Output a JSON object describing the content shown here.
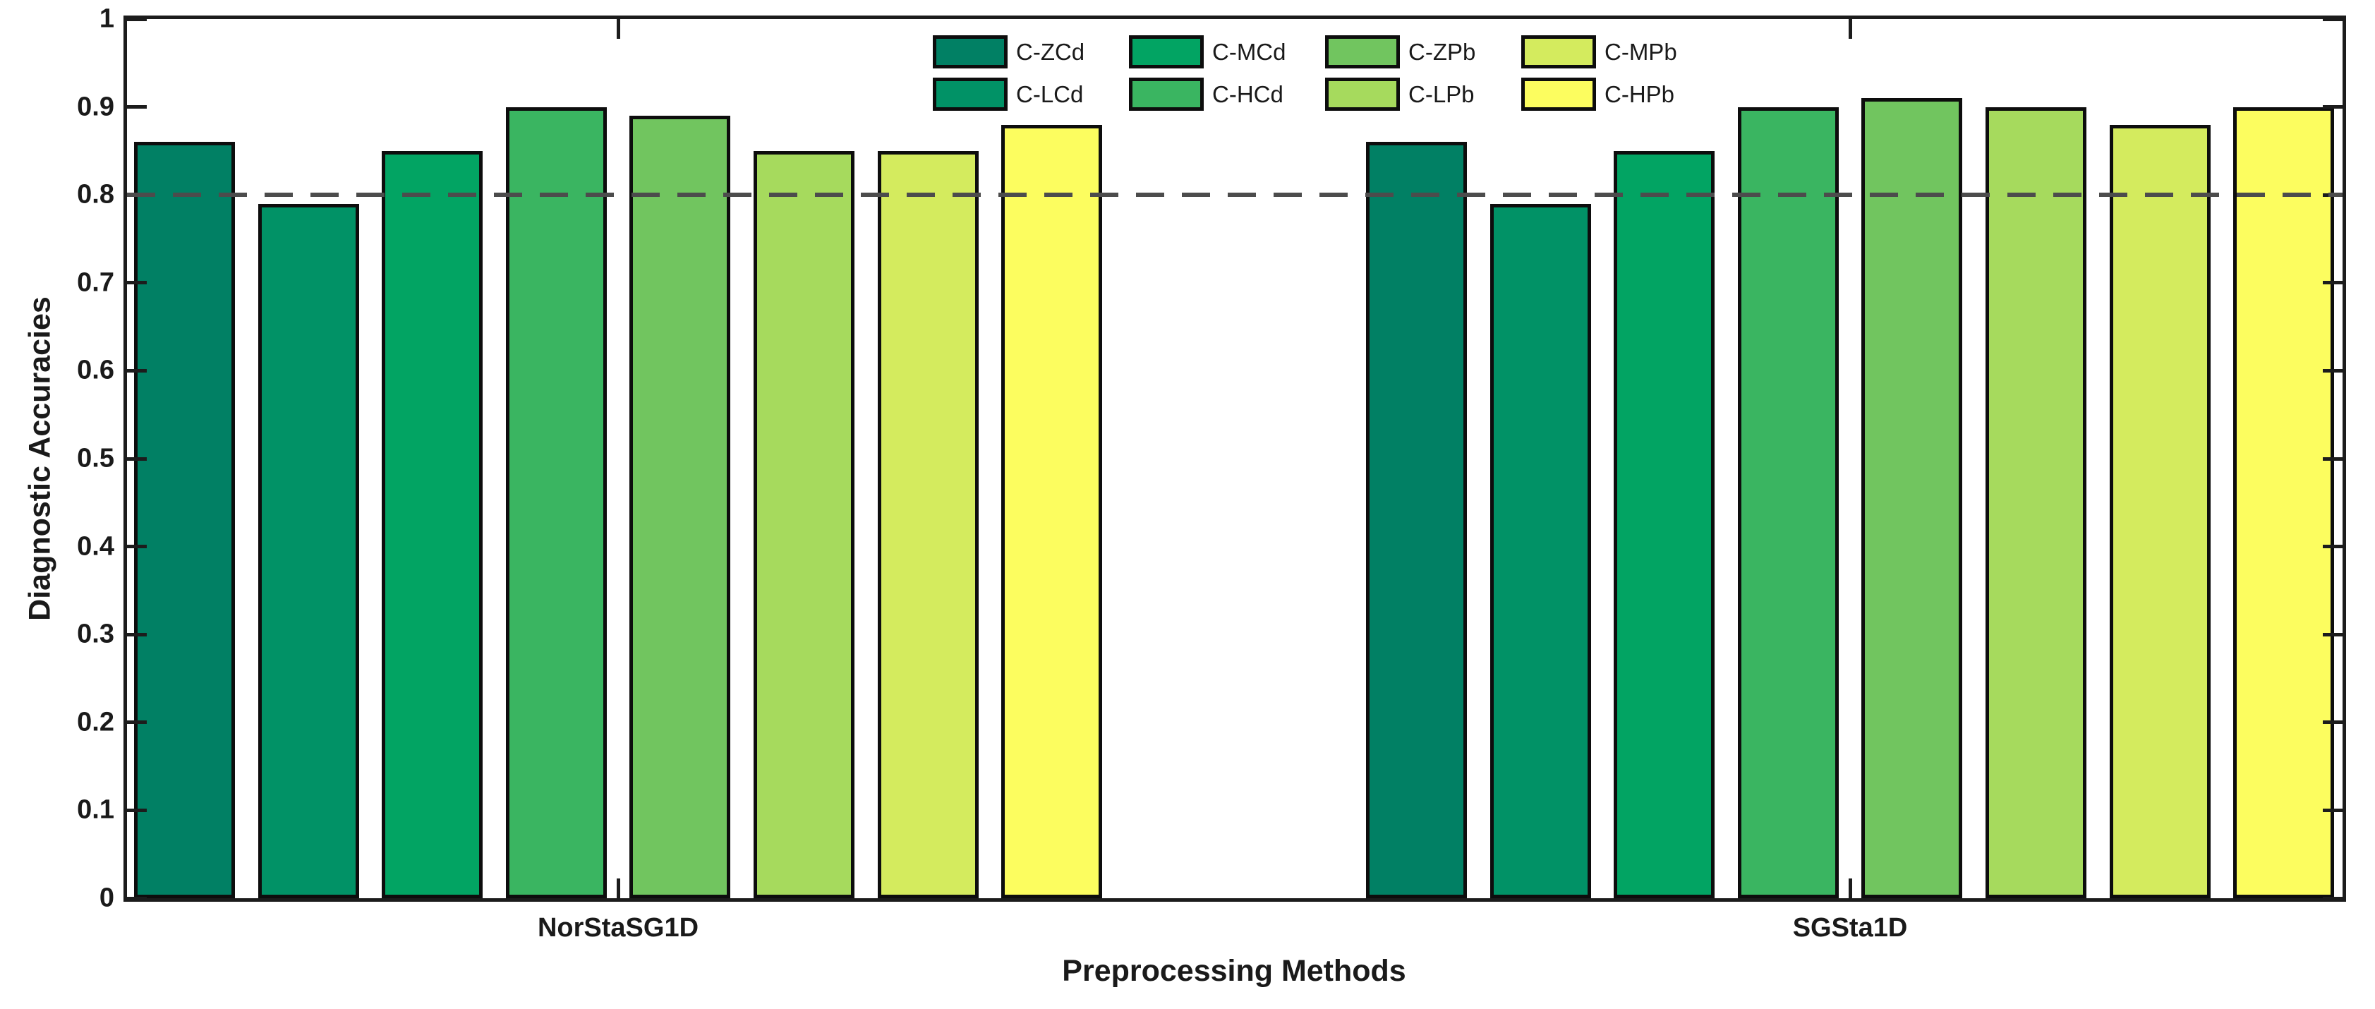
{
  "chart_data": {
    "type": "bar",
    "title": "",
    "xlabel": "Preprocessing Methods",
    "ylabel": "Diagnostic Accuracies",
    "categories": [
      "NorStaSG1D",
      "SGSta1D"
    ],
    "series": [
      {
        "name": "C-ZCd",
        "color": "#018064",
        "values": [
          0.86,
          0.86
        ]
      },
      {
        "name": "C-LCd",
        "color": "#019266",
        "values": [
          0.79,
          0.79
        ]
      },
      {
        "name": "C-MCd",
        "color": "#02A463",
        "values": [
          0.85,
          0.85
        ]
      },
      {
        "name": "C-HCd",
        "color": "#3AB561",
        "values": [
          0.9,
          0.9
        ]
      },
      {
        "name": "C-ZPb",
        "color": "#71C55F",
        "values": [
          0.89,
          0.91
        ]
      },
      {
        "name": "C-LPb",
        "color": "#A6DA5D",
        "values": [
          0.85,
          0.9
        ]
      },
      {
        "name": "C-MPb",
        "color": "#D4EB5E",
        "values": [
          0.85,
          0.88
        ]
      },
      {
        "name": "C-HPb",
        "color": "#FCFD5F",
        "values": [
          0.88,
          0.9
        ]
      }
    ],
    "ylim": [
      0,
      1
    ],
    "yticks": [
      0,
      0.1,
      0.2,
      0.3,
      0.4,
      0.5,
      0.6,
      0.7,
      0.8,
      0.9,
      1
    ],
    "ytick_labels": [
      "0",
      "0.1",
      "0.2",
      "0.3",
      "0.4",
      "0.5",
      "0.6",
      "0.7",
      "0.8",
      "0.9",
      "1"
    ],
    "reference_line": {
      "y": 0.8,
      "style": "dashed",
      "color": "#4C4C4C"
    },
    "legend_rows": 2,
    "legend_columns": 4,
    "legend_position": "top-center",
    "grid": false,
    "axis_color": "#1c1c1c",
    "bar_edge_color": "#0d0d0d"
  }
}
